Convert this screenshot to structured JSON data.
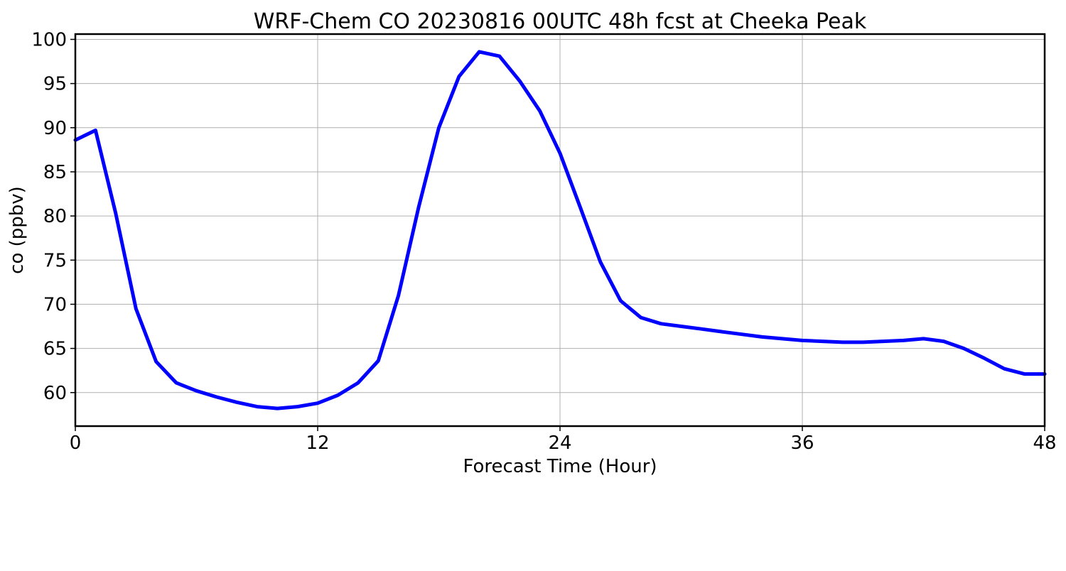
{
  "chart_data": {
    "type": "line",
    "title": "WRF-Chem CO  20230816 00UTC 48h fcst at Cheeka Peak",
    "xlabel": "Forecast Time (Hour)",
    "ylabel": "co  (ppbv)",
    "xlim": [
      0,
      48
    ],
    "ylim": [
      56.2,
      100.6
    ],
    "xticks": [
      0,
      12,
      24,
      36,
      48
    ],
    "yticks": [
      60,
      65,
      70,
      75,
      80,
      85,
      90,
      95,
      100
    ],
    "grid": true,
    "legend": "none",
    "series": [
      {
        "color": "#0000ff",
        "x": [
          0,
          1,
          2,
          3,
          4,
          5,
          6,
          7,
          8,
          9,
          10,
          11,
          12,
          13,
          14,
          15,
          16,
          17,
          18,
          19,
          20,
          21,
          22,
          23,
          24,
          25,
          26,
          27,
          28,
          29,
          30,
          31,
          32,
          33,
          34,
          35,
          36,
          37,
          38,
          39,
          40,
          41,
          42,
          43,
          44,
          45,
          46,
          47,
          48
        ],
        "y": [
          88.6,
          89.7,
          80.3,
          69.5,
          63.5,
          61.1,
          60.2,
          59.5,
          58.9,
          58.4,
          58.2,
          58.4,
          58.8,
          59.7,
          61.1,
          63.6,
          71.0,
          81.0,
          90.0,
          95.8,
          98.6,
          98.1,
          95.3,
          91.9,
          87.1,
          81.0,
          74.8,
          70.4,
          68.5,
          67.8,
          67.5,
          67.2,
          66.9,
          66.6,
          66.3,
          66.1,
          65.9,
          65.8,
          65.7,
          65.7,
          65.8,
          65.9,
          66.1,
          65.8,
          65.0,
          63.9,
          62.7,
          62.1,
          62.1
        ]
      }
    ]
  }
}
